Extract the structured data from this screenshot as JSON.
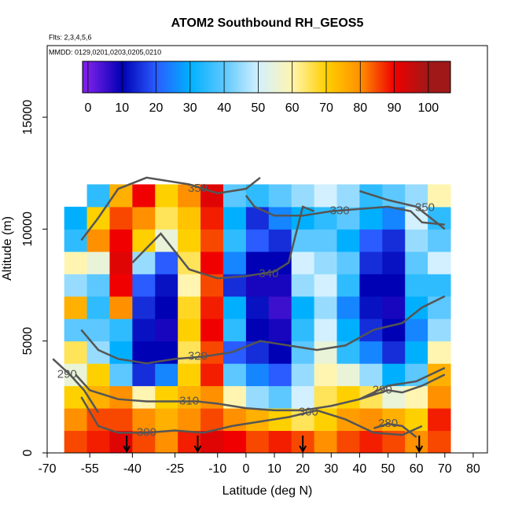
{
  "chart_data": {
    "type": "heatmap",
    "title": "ATOM2 Southbound RH_GEOS5",
    "subtitles": [
      "Flts: 2,3,4,5,6",
      "MMDD: 0129,0201,0203,0205,0210"
    ],
    "x_label": "Latitude (deg N)",
    "y_label": "Altitude (m)",
    "xlim": [
      -70,
      85
    ],
    "ylim": [
      0,
      18200
    ],
    "xticks": [
      -70,
      -55,
      -40,
      -25,
      -10,
      0,
      10,
      20,
      30,
      40,
      50,
      60,
      70,
      80
    ],
    "yticks": [
      0,
      5000,
      10000,
      15000
    ],
    "x": [
      -60,
      -52,
      -44,
      -36,
      -28,
      -20,
      -12,
      -4,
      4,
      12,
      20,
      28,
      36,
      44,
      52,
      60,
      68
    ],
    "y": [
      500,
      1500,
      2500,
      3500,
      4500,
      5500,
      6500,
      7500,
      8500,
      9500,
      10500,
      11500
    ],
    "values": [
      [
        85,
        80,
        70,
        55,
        65,
        40,
        75,
        45,
        60,
        35,
        30,
        null
      ],
      [
        88,
        85,
        75,
        70,
        45,
        40,
        35,
        40,
        55,
        80,
        70,
        35
      ],
      [
        92,
        85,
        80,
        40,
        30,
        35,
        80,
        90,
        92,
        90,
        85,
        75
      ],
      [
        85,
        80,
        60,
        15,
        10,
        12,
        15,
        20,
        45,
        70,
        80,
        90
      ],
      [
        80,
        75,
        70,
        25,
        10,
        8,
        10,
        12,
        20,
        55,
        65,
        70
      ],
      [
        88,
        80,
        75,
        70,
        65,
        70,
        68,
        60,
        65,
        70,
        72,
        80
      ],
      [
        92,
        85,
        80,
        88,
        85,
        90,
        88,
        85,
        90,
        85,
        88,
        92
      ],
      [
        90,
        80,
        60,
        40,
        20,
        35,
        30,
        15,
        25,
        35,
        30,
        40
      ],
      [
        85,
        75,
        45,
        25,
        15,
        10,
        12,
        8,
        10,
        20,
        15,
        35
      ],
      [
        88,
        70,
        40,
        20,
        10,
        8,
        5,
        8,
        10,
        15,
        25,
        40
      ],
      [
        85,
        65,
        50,
        45,
        40,
        35,
        30,
        45,
        50,
        40,
        30,
        45
      ],
      [
        80,
        70,
        65,
        60,
        55,
        50,
        45,
        50,
        45,
        40,
        35,
        50
      ],
      [
        85,
        78,
        70,
        55,
        35,
        30,
        25,
        35,
        40,
        30,
        40,
        45
      ],
      [
        88,
        80,
        65,
        45,
        25,
        15,
        12,
        10,
        15,
        20,
        30,
        35
      ],
      [
        85,
        75,
        55,
        30,
        15,
        10,
        8,
        10,
        12,
        15,
        25,
        40
      ],
      [
        80,
        70,
        60,
        40,
        30,
        25,
        30,
        35,
        40,
        45,
        50,
        45
      ],
      [
        85,
        88,
        80,
        75,
        60,
        45,
        40,
        35,
        50,
        40,
        35,
        60
      ]
    ],
    "clim": [
      -1.6,
      106.5
    ],
    "colorbar_ticks": [
      0,
      10,
      20,
      30,
      40,
      50,
      60,
      70,
      80,
      90,
      100
    ],
    "colorscale": [
      "#7a1fe8",
      "#0000b4",
      "#2a5cff",
      "#00b0ff",
      "#5cc8ff",
      "#d2f0ff",
      "#fff5b0",
      "#ffd000",
      "#ff9000",
      "#f00000",
      "#a01818"
    ],
    "contour_color": "#555555",
    "contours": [
      {
        "level": 350,
        "x": [
          -58,
          -52,
          -45,
          -35,
          -20,
          -10,
          0,
          5
        ],
        "y": [
          9500,
          10500,
          11800,
          12300,
          12000,
          11600,
          11800,
          12300
        ]
      },
      {
        "level": 350,
        "x": [
          40,
          50,
          60,
          70
        ],
        "y": [
          11700,
          11300,
          11000,
          10000
        ]
      },
      {
        "level": 330,
        "x": [
          0,
          3,
          10,
          20,
          30,
          40,
          50,
          58,
          62,
          70
        ],
        "y": [
          11500,
          11000,
          10600,
          10600,
          10800,
          10900,
          11000,
          10800,
          10300,
          10200
        ]
      },
      {
        "level": 340,
        "x": [
          -40,
          -30,
          -20,
          -10,
          0,
          5,
          10,
          15,
          18,
          20,
          24
        ],
        "y": [
          8500,
          9800,
          8200,
          7800,
          7900,
          8000,
          8100,
          8500,
          10000,
          11000,
          10800
        ]
      },
      {
        "level": 320,
        "x": [
          -58,
          -52,
          -45,
          -35,
          -25,
          -15,
          -5,
          5,
          15,
          25,
          35,
          45,
          55,
          62,
          70
        ],
        "y": [
          5500,
          4600,
          4200,
          4000,
          4200,
          4300,
          4500,
          5000,
          4800,
          4600,
          4800,
          5500,
          5800,
          6500,
          7000
        ]
      },
      {
        "level": 310,
        "x": [
          -60,
          -55,
          -45,
          -35,
          -25,
          -17,
          -10,
          0,
          10,
          20,
          30,
          40,
          50,
          60,
          70
        ],
        "y": [
          3500,
          2800,
          2400,
          2300,
          2300,
          2300,
          2200,
          2000,
          1900,
          1900,
          2100,
          2400,
          3000,
          3200,
          3800
        ]
      },
      {
        "level": 300,
        "x": [
          -58,
          -52,
          -45,
          -35,
          -25,
          -15,
          -5,
          5,
          15,
          25,
          35,
          45,
          55,
          62
        ],
        "y": [
          2500,
          1200,
          900,
          900,
          1000,
          900,
          1200,
          1400,
          1600,
          1900,
          1500,
          900,
          800,
          1200
        ]
      },
      {
        "level": 290,
        "x": [
          -68,
          -62,
          -57,
          -52
        ],
        "y": [
          4200,
          3500,
          2800,
          1800
        ]
      },
      {
        "level": 290,
        "x": [
          40,
          45,
          50,
          55,
          62,
          70
        ],
        "y": [
          2400,
          2600,
          2800,
          2700,
          3000,
          3500
        ]
      },
      {
        "level": 280,
        "x": [
          45,
          50,
          55,
          60
        ],
        "y": [
          1100,
          1300,
          1200,
          700
        ]
      }
    ],
    "contour_labels": [
      {
        "level": 350,
        "x": -17,
        "y": 11800
      },
      {
        "level": 350,
        "x": 63,
        "y": 10950
      },
      {
        "level": 330,
        "x": 33,
        "y": 10800
      },
      {
        "level": 340,
        "x": 8,
        "y": 8000
      },
      {
        "level": 320,
        "x": -17,
        "y": 4300
      },
      {
        "level": 310,
        "x": -20,
        "y": 2300
      },
      {
        "level": 300,
        "x": -35,
        "y": 900
      },
      {
        "level": 300,
        "x": 22,
        "y": 1800
      },
      {
        "level": 290,
        "x": -63,
        "y": 3500
      },
      {
        "level": 290,
        "x": 48,
        "y": 2800
      },
      {
        "level": 280,
        "x": 50,
        "y": 1300
      }
    ],
    "arrows": [
      -42,
      -17,
      20,
      61
    ]
  }
}
